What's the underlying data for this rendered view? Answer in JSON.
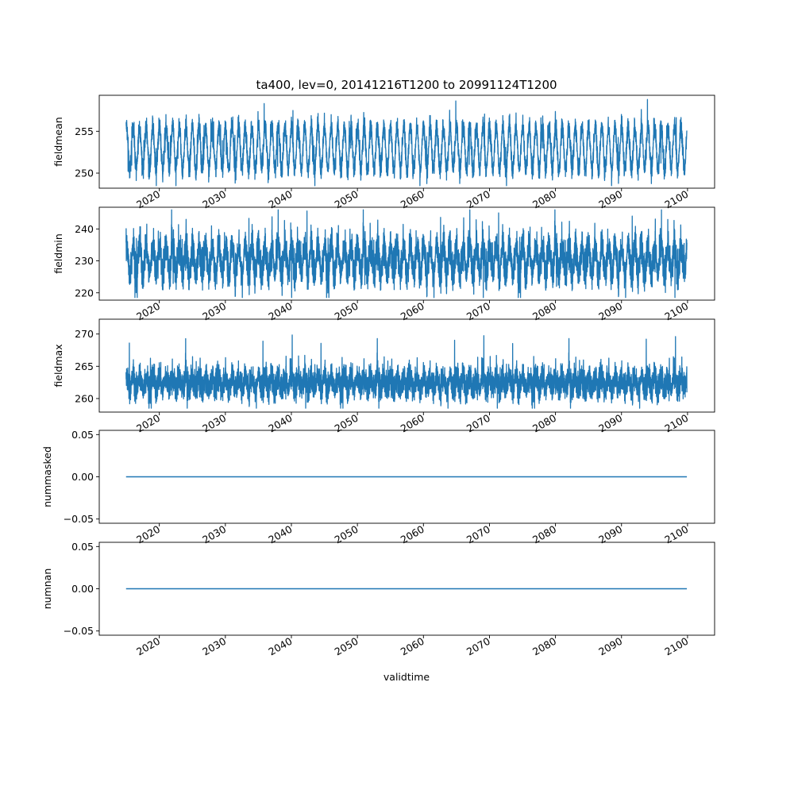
{
  "figure": {
    "title": "ta400, lev=0, 20141216T1200 to 20991124T1200",
    "xlabel": "validtime",
    "line_color": "#1f77b4"
  },
  "chart_data": [
    {
      "type": "line",
      "ylabel": "fieldmean",
      "xlim": [
        2010.9,
        2104.1
      ],
      "ylim": [
        248.2,
        259.3
      ],
      "yticks": [
        250,
        255
      ],
      "ytick_labels": [
        "250",
        "255"
      ],
      "xticks": [
        2020,
        2030,
        2040,
        2050,
        2060,
        2070,
        2080,
        2090,
        2100
      ],
      "xtick_labels": [
        "2020",
        "2030",
        "2040",
        "2050",
        "2060",
        "2070",
        "2080",
        "2090",
        "2100"
      ],
      "x_start": 2014.96,
      "x_end": 2099.9,
      "signal": {
        "mean": 253.0,
        "seasonal_amplitude": 2.6,
        "noise": 0.9,
        "min": 248.5,
        "max": 258.8
      }
    },
    {
      "type": "line",
      "ylabel": "fieldmin",
      "xlim": [
        2010.9,
        2104.1
      ],
      "ylim": [
        217.7,
        246.8
      ],
      "yticks": [
        220,
        230,
        240
      ],
      "ytick_labels": [
        "220",
        "230",
        "240"
      ],
      "xticks": [
        2020,
        2030,
        2040,
        2050,
        2060,
        2070,
        2080,
        2090,
        2100
      ],
      "xtick_labels": [
        "2020",
        "2030",
        "2040",
        "2050",
        "2060",
        "2070",
        "2080",
        "2090",
        "2100"
      ],
      "x_start": 2014.96,
      "x_end": 2099.9,
      "signal": {
        "mean": 230.5,
        "seasonal_amplitude": 4.5,
        "noise": 4.0,
        "min": 218.5,
        "max": 246.0
      }
    },
    {
      "type": "line",
      "ylabel": "fieldmax",
      "xlim": [
        2010.9,
        2104.1
      ],
      "ylim": [
        257.9,
        272.3
      ],
      "yticks": [
        260,
        265,
        270
      ],
      "ytick_labels": [
        "260",
        "265",
        "270"
      ],
      "xticks": [
        2020,
        2030,
        2040,
        2050,
        2060,
        2070,
        2080,
        2090,
        2100
      ],
      "xtick_labels": [
        "2020",
        "2030",
        "2040",
        "2050",
        "2060",
        "2070",
        "2080",
        "2090",
        "2100"
      ],
      "x_start": 2014.96,
      "x_end": 2099.9,
      "signal": {
        "mean": 262.5,
        "seasonal_amplitude": 1.0,
        "noise": 1.6,
        "min": 258.5,
        "max": 271.8
      }
    },
    {
      "type": "line",
      "ylabel": "nummasked",
      "xlim": [
        2010.9,
        2104.1
      ],
      "ylim": [
        -0.055,
        0.055
      ],
      "yticks": [
        -0.05,
        0.0,
        0.05
      ],
      "ytick_labels": [
        "−0.05",
        "0.00",
        "0.05"
      ],
      "xticks": [
        2020,
        2030,
        2040,
        2050,
        2060,
        2070,
        2080,
        2090,
        2100
      ],
      "xtick_labels": [
        "2020",
        "2030",
        "2040",
        "2050",
        "2060",
        "2070",
        "2080",
        "2090",
        "2100"
      ],
      "x": [
        2014.96,
        2099.9
      ],
      "y": [
        0.0,
        0.0
      ]
    },
    {
      "type": "line",
      "ylabel": "numnan",
      "xlim": [
        2010.9,
        2104.1
      ],
      "ylim": [
        -0.055,
        0.055
      ],
      "yticks": [
        -0.05,
        0.0,
        0.05
      ],
      "ytick_labels": [
        "−0.05",
        "0.00",
        "0.05"
      ],
      "xticks": [
        2020,
        2030,
        2040,
        2050,
        2060,
        2070,
        2080,
        2090,
        2100
      ],
      "xtick_labels": [
        "2020",
        "2030",
        "2040",
        "2050",
        "2060",
        "2070",
        "2080",
        "2090",
        "2100"
      ],
      "x": [
        2014.96,
        2099.9
      ],
      "y": [
        0.0,
        0.0
      ]
    }
  ]
}
